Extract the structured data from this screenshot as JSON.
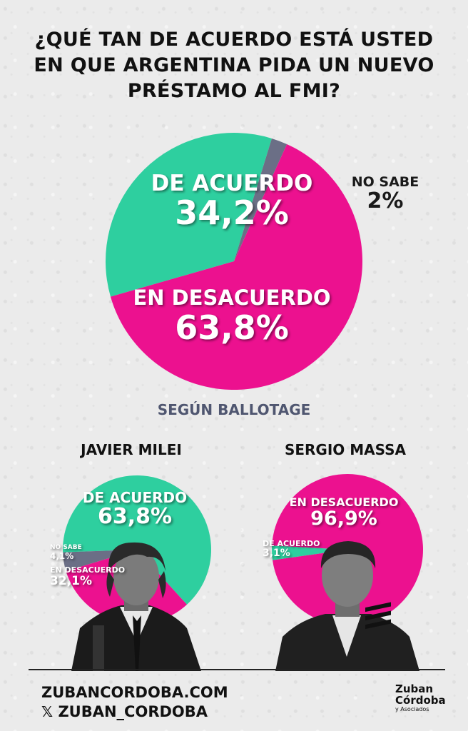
{
  "title": "¿QUÉ TAN DE ACUERDO ESTÁ USTED EN QUE ARGENTINA PIDA UN NUEVO PRÉSTAMO AL FMI?",
  "colors": {
    "agree": "#2ecf9f",
    "disagree": "#ec118f",
    "unsure": "#6b6f86"
  },
  "subtitle": "SEGÚN BALLOTAGE",
  "chart_data": [
    {
      "type": "pie",
      "title": "¿QUÉ TAN DE ACUERDO ESTÁ USTED EN QUE ARGENTINA PIDA UN NUEVO PRÉSTAMO AL FMI?",
      "slices": [
        {
          "label": "DE ACUERDO",
          "value": 34.2,
          "value_label": "34,2%"
        },
        {
          "label": "EN DESACUERDO",
          "value": 63.8,
          "value_label": "63,8%"
        },
        {
          "label": "NO SABE",
          "value": 2,
          "value_label": "2%"
        }
      ]
    },
    {
      "type": "pie",
      "title": "JAVIER MILEI",
      "slices": [
        {
          "label": "DE ACUERDO",
          "value": 63.8,
          "value_label": "63,8%"
        },
        {
          "label": "EN DESACUERDO",
          "value": 32.1,
          "value_label": "32,1%"
        },
        {
          "label": "NO SABE",
          "value": 4.1,
          "value_label": "4,1%"
        }
      ]
    },
    {
      "type": "pie",
      "title": "SERGIO MASSA",
      "slices": [
        {
          "label": "DE ACUERDO",
          "value": 3.1,
          "value_label": "3,1%"
        },
        {
          "label": "EN DESACUERDO",
          "value": 96.9,
          "value_label": "96,9%"
        }
      ]
    }
  ],
  "footer": {
    "website": "ZUBANCORDOBA.COM",
    "social_icon": "x-icon",
    "social": "ZUBAN_CORDOBA",
    "logo_line1": "Zuban",
    "logo_line2": "Córdoba",
    "logo_line3": "y Asociados"
  }
}
